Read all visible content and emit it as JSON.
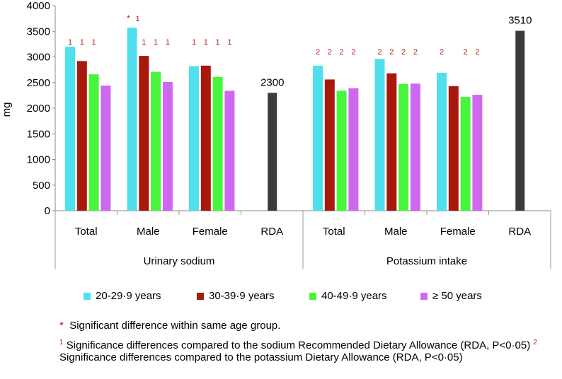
{
  "chart_data": {
    "type": "bar",
    "ylabel": "mg",
    "ylim": [
      0,
      4000
    ],
    "yticks": [
      "0",
      "500",
      "1000",
      "1500",
      "2000",
      "2500",
      "3000",
      "3500",
      "4000"
    ],
    "groups": [
      {
        "name": "Urinary sodium",
        "categories": [
          {
            "label": "Total",
            "values": [
              3200,
              2920,
              2660,
              2440
            ],
            "marks": [
              "1",
              "1",
              "1",
              ""
            ],
            "star": false
          },
          {
            "label": "Male",
            "values": [
              3570,
              3020,
              2710,
              2510
            ],
            "marks": [
              "",
              "1",
              "1",
              "1"
            ],
            "star": true,
            "star_mark": "1"
          },
          {
            "label": "Female",
            "values": [
              2820,
              2830,
              2610,
              2340
            ],
            "marks": [
              "1",
              "1",
              "1",
              "1"
            ],
            "star": false
          },
          {
            "label": "RDA",
            "rda": 2300,
            "rda_label": "2300"
          }
        ]
      },
      {
        "name": "Potassium intake",
        "categories": [
          {
            "label": "Total",
            "values": [
              2830,
              2560,
              2340,
              2390
            ],
            "marks": [
              "2",
              "2",
              "2",
              "2"
            ],
            "star": false
          },
          {
            "label": "Male",
            "values": [
              2960,
              2680,
              2470,
              2480
            ],
            "marks": [
              "2",
              "2",
              "2",
              "2"
            ],
            "star": false
          },
          {
            "label": "Female",
            "values": [
              2690,
              2430,
              2220,
              2260
            ],
            "marks": [
              "2",
              "",
              "2",
              "2"
            ],
            "star": false
          },
          {
            "label": "RDA",
            "rda": 3510,
            "rda_label": "3510"
          }
        ]
      }
    ],
    "series": [
      {
        "name": "20-29·9 years",
        "color": "#4fe0ed"
      },
      {
        "name": "30-39·9 years",
        "color": "#a8190c"
      },
      {
        "name": "40-49·9 years",
        "color": "#47f53c"
      },
      {
        "name": "≥ 50 years",
        "color": "#cf68f0"
      }
    ],
    "rda_color": "#3b3b3b",
    "mark_color": "#b11a12",
    "star_symbol": "*"
  },
  "notes": {
    "star_symbol": "*",
    "star_text": "Significant difference within same age group.",
    "sup1": "1",
    "note1_text": "Significance differences compared to the sodium Recommended Dietary Allowance (RDA, P<0·05)",
    "sup2": "2",
    "note2_text": "Significance differences compared to the potassium Dietary Allowance (RDA, P<0·05)"
  }
}
